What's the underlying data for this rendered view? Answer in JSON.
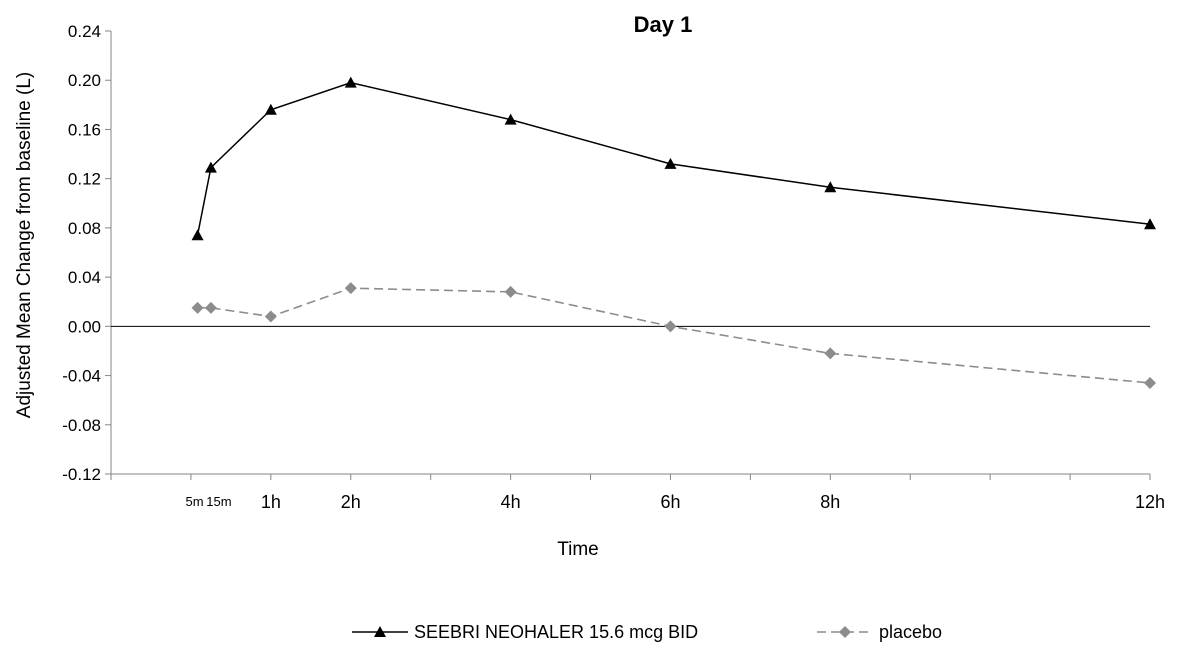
{
  "chart_data": {
    "type": "line",
    "title": "Day 1",
    "xlabel": "Time",
    "ylabel": "Adjusted Mean Change from baseline (L)",
    "ylim": [
      -0.12,
      0.24
    ],
    "yticks": [
      "0.24",
      "0.20",
      "0.16",
      "0.12",
      "0.08",
      "0.04",
      "0.00",
      "-0.04",
      "-0.08",
      "-0.12"
    ],
    "xlim_hours": [
      -1,
      12
    ],
    "xticks": [
      {
        "label": "5m",
        "hours": 0.083,
        "small": true
      },
      {
        "label": "15m",
        "hours": 0.25,
        "small": true
      },
      {
        "label": "1h",
        "hours": 1
      },
      {
        "label": "2h",
        "hours": 2
      },
      {
        "label": "4h",
        "hours": 4
      },
      {
        "label": "6h",
        "hours": 6
      },
      {
        "label": "8h",
        "hours": 8
      },
      {
        "label": "12h",
        "hours": 12
      }
    ],
    "series": [
      {
        "name": "SEEBRI NEOHALER 15.6 mcg BID",
        "color": "#000000",
        "marker": "triangle",
        "dash": "solid",
        "x_hours": [
          0.083,
          0.25,
          1,
          2,
          4,
          6,
          8,
          12
        ],
        "values": [
          0.074,
          0.129,
          0.176,
          0.198,
          0.168,
          0.132,
          0.113,
          0.083
        ]
      },
      {
        "name": "placebo",
        "color": "#8c8c8c",
        "marker": "diamond",
        "dash": "dashed",
        "x_hours": [
          0.083,
          0.25,
          1,
          2,
          4,
          6,
          8,
          12
        ],
        "values": [
          0.015,
          0.015,
          0.008,
          0.031,
          0.028,
          0.0,
          -0.022,
          -0.046
        ]
      }
    ],
    "legend_position": "bottom-center",
    "grid": false
  }
}
